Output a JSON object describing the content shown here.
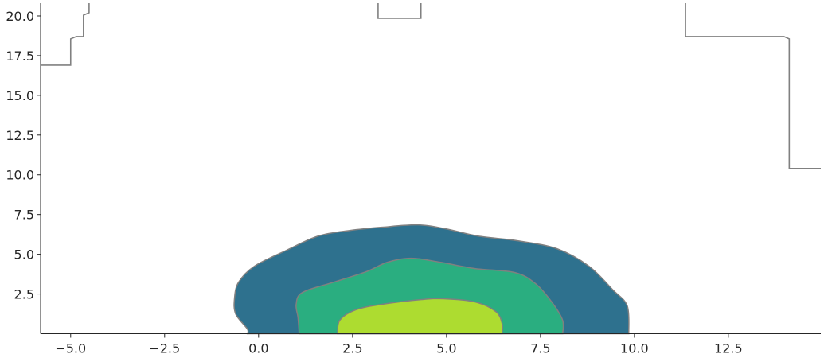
{
  "chart_data": {
    "type": "contour",
    "title": "",
    "xlabel": "",
    "ylabel": "",
    "xlim": [
      -5.8,
      14.96
    ],
    "ylim": [
      0,
      20.8
    ],
    "grid": false,
    "xticks": [
      "−5.0",
      "−2.5",
      "0.0",
      "2.5",
      "5.0",
      "7.5",
      "10.0",
      "12.5"
    ],
    "xtick_values": [
      -5,
      -2.5,
      0,
      2.5,
      5,
      7.5,
      10,
      12.5
    ],
    "yticks": [
      "2.5",
      "5.0",
      "7.5",
      "10.0",
      "12.5",
      "15.0",
      "17.5",
      "20.0"
    ],
    "ytick_values": [
      2.5,
      5,
      7.5,
      10,
      12.5,
      15,
      17.5,
      20
    ],
    "contour_levels": [
      {
        "level": "outer",
        "color": "#2e718e",
        "points": [
          [
            -0.3,
            0
          ],
          [
            -0.3,
            0.3
          ],
          [
            -0.61,
            1.25
          ],
          [
            -0.64,
            2.25
          ],
          [
            -0.53,
            3.25
          ],
          [
            -0.11,
            4.25
          ],
          [
            0.74,
            5.25
          ],
          [
            1.59,
            6.15
          ],
          [
            2.44,
            6.5
          ],
          [
            3.28,
            6.7
          ],
          [
            4.24,
            6.85
          ],
          [
            4.98,
            6.6
          ],
          [
            5.83,
            6.15
          ],
          [
            6.89,
            5.85
          ],
          [
            7.94,
            5.35
          ],
          [
            8.79,
            4.25
          ],
          [
            9.43,
            2.75
          ],
          [
            9.81,
            1.75
          ],
          [
            9.85,
            0
          ]
        ]
      },
      {
        "level": "middle",
        "color": "#2aae80",
        "points": [
          [
            1.08,
            0
          ],
          [
            1.05,
            1.0
          ],
          [
            1.0,
            1.85
          ],
          [
            1.17,
            2.6
          ],
          [
            2.01,
            3.25
          ],
          [
            2.86,
            3.9
          ],
          [
            3.43,
            4.5
          ],
          [
            4.07,
            4.75
          ],
          [
            4.83,
            4.5
          ],
          [
            5.76,
            4.1
          ],
          [
            6.82,
            3.85
          ],
          [
            7.37,
            3.15
          ],
          [
            7.8,
            2.0
          ],
          [
            8.09,
            0.85
          ],
          [
            8.09,
            0
          ]
        ]
      },
      {
        "level": "inner",
        "color": "#addc30",
        "points": [
          [
            2.1,
            0
          ],
          [
            2.16,
            0.85
          ],
          [
            2.58,
            1.5
          ],
          [
            3.28,
            1.85
          ],
          [
            4.34,
            2.15
          ],
          [
            4.92,
            2.2
          ],
          [
            5.76,
            2.0
          ],
          [
            6.31,
            1.4
          ],
          [
            6.48,
            0.65
          ],
          [
            6.48,
            0
          ]
        ]
      }
    ],
    "contour_edge_color": "#808080",
    "step_line": {
      "color": "#808080",
      "segments": [
        [
          [
            -5.8,
            16.9
          ],
          [
            -5.0,
            16.9
          ],
          [
            -5.0,
            18.55
          ],
          [
            -4.85,
            18.7
          ],
          [
            -4.66,
            18.7
          ],
          [
            -4.66,
            20.05
          ],
          [
            -4.51,
            20.2
          ],
          [
            -4.51,
            20.8
          ]
        ],
        [
          [
            3.18,
            20.8
          ],
          [
            3.18,
            19.85
          ],
          [
            4.32,
            19.85
          ],
          [
            4.32,
            20.8
          ]
        ],
        [
          [
            11.36,
            20.8
          ],
          [
            11.36,
            18.7
          ],
          [
            13.98,
            18.7
          ],
          [
            14.12,
            18.55
          ],
          [
            14.12,
            10.4
          ],
          [
            14.96,
            10.4
          ]
        ]
      ]
    }
  }
}
